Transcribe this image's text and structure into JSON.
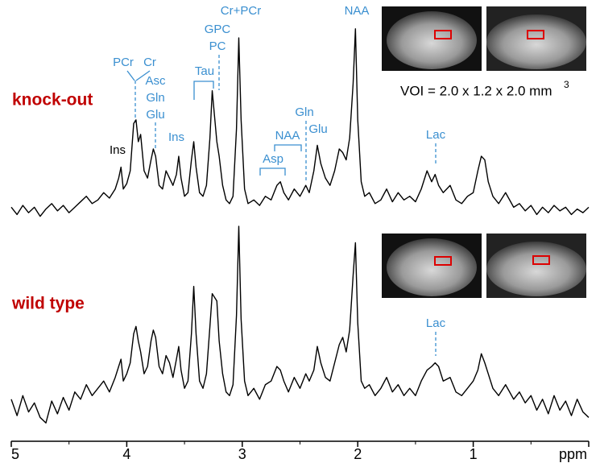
{
  "chart_data": [
    {
      "type": "line",
      "title": "knock-out",
      "color": "#000000",
      "xlim": [
        5,
        0
      ],
      "ylim": [
        -12,
        103
      ],
      "annotations": [
        "PCr",
        "Cr",
        "Asc",
        "Gln",
        "Glu",
        "Ins",
        "Ins",
        "Tau",
        "GPC",
        "PC",
        "Cr+PCr",
        "Asp",
        "NAA",
        "Gln",
        "Glu",
        "NAA",
        "Lac"
      ],
      "voi_label": "VOI = 2.0 x 1.2 x 2.0 mm",
      "voi_exponent": "3",
      "x": [
        5.0,
        4.95,
        4.9,
        4.85,
        4.8,
        4.75,
        4.7,
        4.65,
        4.6,
        4.55,
        4.5,
        4.45,
        4.4,
        4.35,
        4.3,
        4.25,
        4.2,
        4.15,
        4.1,
        4.07,
        4.05,
        4.03,
        4.0,
        3.97,
        3.94,
        3.92,
        3.9,
        3.88,
        3.85,
        3.82,
        3.79,
        3.77,
        3.75,
        3.72,
        3.69,
        3.66,
        3.63,
        3.6,
        3.57,
        3.55,
        3.53,
        3.5,
        3.47,
        3.44,
        3.42,
        3.4,
        3.37,
        3.34,
        3.31,
        3.28,
        3.26,
        3.24,
        3.22,
        3.2,
        3.17,
        3.14,
        3.11,
        3.08,
        3.05,
        3.03,
        3.01,
        2.98,
        2.95,
        2.9,
        2.85,
        2.8,
        2.75,
        2.7,
        2.67,
        2.64,
        2.6,
        2.55,
        2.5,
        2.45,
        2.42,
        2.38,
        2.35,
        2.32,
        2.28,
        2.24,
        2.2,
        2.16,
        2.13,
        2.1,
        2.07,
        2.04,
        2.02,
        2.0,
        1.97,
        1.94,
        1.9,
        1.85,
        1.8,
        1.75,
        1.7,
        1.65,
        1.6,
        1.55,
        1.5,
        1.45,
        1.4,
        1.36,
        1.33,
        1.3,
        1.26,
        1.2,
        1.15,
        1.1,
        1.05,
        1.0,
        0.96,
        0.93,
        0.9,
        0.87,
        0.83,
        0.78,
        0.72,
        0.65,
        0.6,
        0.55,
        0.5,
        0.45,
        0.4,
        0.35,
        0.3,
        0.25,
        0.2,
        0.15,
        0.1,
        0.05,
        0.0
      ],
      "values": [
        2,
        -2,
        3,
        -1,
        2,
        -3,
        1,
        4,
        0,
        3,
        -1,
        2,
        5,
        8,
        4,
        6,
        10,
        7,
        12,
        18,
        24,
        12,
        15,
        22,
        48,
        50,
        38,
        42,
        22,
        18,
        28,
        34,
        30,
        14,
        12,
        22,
        18,
        14,
        20,
        30,
        18,
        8,
        10,
        28,
        38,
        24,
        10,
        8,
        14,
        40,
        66,
        52,
        38,
        30,
        14,
        6,
        4,
        8,
        45,
        95,
        50,
        12,
        4,
        6,
        3,
        8,
        6,
        14,
        16,
        10,
        6,
        12,
        8,
        14,
        10,
        22,
        36,
        26,
        18,
        14,
        22,
        34,
        32,
        28,
        40,
        70,
        100,
        50,
        16,
        8,
        10,
        4,
        6,
        12,
        5,
        10,
        6,
        8,
        5,
        12,
        22,
        16,
        20,
        14,
        10,
        14,
        6,
        4,
        8,
        10,
        22,
        30,
        28,
        16,
        8,
        4,
        10,
        2,
        4,
        0,
        3,
        -2,
        2,
        -1,
        3,
        0,
        2,
        -2,
        1,
        -1,
        2
      ]
    },
    {
      "type": "line",
      "title": "wild type",
      "color": "#000000",
      "xlim": [
        5,
        0
      ],
      "ylim": [
        -12,
        103
      ],
      "xticks": [
        5,
        4,
        3,
        2,
        1
      ],
      "xlabel": "ppm",
      "annotations": [
        "Lac"
      ],
      "x": [
        5.0,
        4.95,
        4.9,
        4.85,
        4.8,
        4.75,
        4.7,
        4.65,
        4.6,
        4.55,
        4.5,
        4.45,
        4.4,
        4.35,
        4.3,
        4.25,
        4.2,
        4.15,
        4.1,
        4.07,
        4.05,
        4.03,
        4.0,
        3.97,
        3.94,
        3.92,
        3.9,
        3.88,
        3.85,
        3.82,
        3.79,
        3.77,
        3.75,
        3.72,
        3.69,
        3.66,
        3.63,
        3.6,
        3.57,
        3.55,
        3.53,
        3.5,
        3.47,
        3.44,
        3.42,
        3.4,
        3.37,
        3.34,
        3.31,
        3.28,
        3.26,
        3.24,
        3.22,
        3.2,
        3.17,
        3.14,
        3.11,
        3.08,
        3.05,
        3.03,
        3.01,
        2.98,
        2.95,
        2.9,
        2.85,
        2.8,
        2.75,
        2.7,
        2.67,
        2.64,
        2.6,
        2.55,
        2.5,
        2.45,
        2.42,
        2.38,
        2.35,
        2.32,
        2.28,
        2.24,
        2.2,
        2.16,
        2.13,
        2.1,
        2.07,
        2.04,
        2.02,
        2.0,
        1.97,
        1.94,
        1.9,
        1.85,
        1.8,
        1.75,
        1.7,
        1.65,
        1.6,
        1.55,
        1.5,
        1.45,
        1.4,
        1.36,
        1.33,
        1.3,
        1.26,
        1.2,
        1.15,
        1.1,
        1.05,
        1.0,
        0.96,
        0.93,
        0.9,
        0.87,
        0.83,
        0.78,
        0.72,
        0.65,
        0.6,
        0.55,
        0.5,
        0.45,
        0.4,
        0.35,
        0.3,
        0.25,
        0.2,
        0.15,
        0.1,
        0.05,
        0.0
      ],
      "values": [
        4,
        -5,
        6,
        -3,
        2,
        -6,
        -9,
        3,
        -4,
        5,
        -2,
        8,
        4,
        12,
        6,
        10,
        14,
        8,
        16,
        22,
        26,
        14,
        18,
        24,
        40,
        44,
        36,
        30,
        18,
        22,
        36,
        42,
        38,
        22,
        18,
        28,
        24,
        16,
        26,
        33,
        20,
        10,
        14,
        40,
        66,
        40,
        14,
        10,
        18,
        44,
        62,
        60,
        58,
        36,
        18,
        8,
        6,
        12,
        50,
        99,
        48,
        14,
        6,
        10,
        4,
        12,
        14,
        22,
        20,
        14,
        8,
        16,
        10,
        18,
        14,
        20,
        33,
        24,
        16,
        14,
        24,
        34,
        38,
        30,
        42,
        72,
        90,
        46,
        14,
        10,
        12,
        6,
        10,
        16,
        8,
        12,
        6,
        10,
        6,
        14,
        20,
        22,
        24,
        22,
        14,
        16,
        8,
        6,
        10,
        14,
        20,
        29,
        24,
        18,
        10,
        6,
        12,
        4,
        8,
        2,
        6,
        -2,
        4,
        -4,
        6,
        -2,
        3,
        -5,
        4,
        -3,
        -6
      ]
    }
  ]
}
